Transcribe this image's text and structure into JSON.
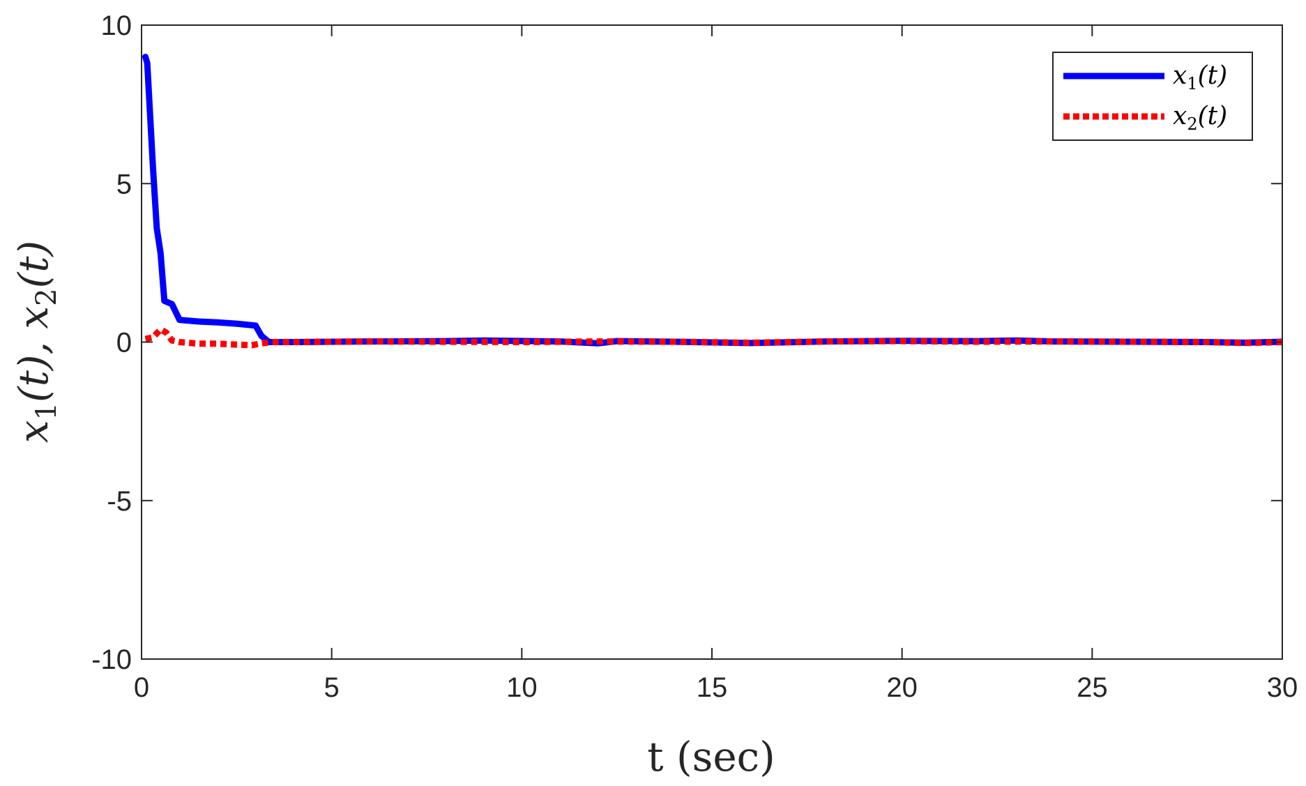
{
  "chart_data": {
    "type": "line",
    "xlabel": "t (sec)",
    "ylabel": {
      "prefix1": "x",
      "sub1": "1",
      "mid": "(t), x",
      "sub2": "2",
      "suffix": "(t)"
    },
    "xlim": [
      0,
      30
    ],
    "ylim": [
      -10,
      10
    ],
    "xticks": [
      0,
      5,
      10,
      15,
      20,
      25,
      30
    ],
    "yticks": [
      -10,
      -5,
      0,
      5,
      10
    ],
    "xtick_labels": [
      "0",
      "5",
      "10",
      "15",
      "20",
      "25",
      "30"
    ],
    "ytick_labels": [
      "-10",
      "-5",
      "0",
      "5",
      "10"
    ],
    "grid": false,
    "legend_position": "top-right",
    "series": [
      {
        "name": "x1(t)",
        "legend": {
          "base": "x",
          "sub": "1",
          "rest": "(t)"
        },
        "color": "#0000ff",
        "style": "solid",
        "x": [
          0.1,
          0.15,
          0.3,
          0.4,
          0.5,
          0.6,
          0.8,
          1.0,
          1.5,
          2.0,
          2.5,
          3.0,
          3.15,
          3.35,
          4,
          6,
          8,
          9,
          11,
          12,
          12.5,
          14,
          16,
          18,
          20,
          22,
          23,
          24,
          26,
          28,
          29,
          30
        ],
        "y": [
          9.0,
          8.8,
          5.5,
          3.6,
          2.8,
          1.3,
          1.2,
          0.7,
          0.65,
          0.62,
          0.58,
          0.52,
          0.2,
          0.0,
          0.0,
          0.02,
          0.03,
          0.05,
          0.02,
          -0.04,
          0.03,
          0.01,
          -0.03,
          0.02,
          0.04,
          0.03,
          0.05,
          0.02,
          0.01,
          0.0,
          -0.02,
          0.01
        ]
      },
      {
        "name": "x2(t)",
        "legend": {
          "base": "x",
          "sub": "2",
          "rest": "(t)"
        },
        "color": "#ff0000",
        "style": "dotted",
        "x": [
          0.1,
          0.3,
          0.5,
          0.65,
          0.8,
          1.0,
          1.5,
          2.0,
          2.5,
          2.9,
          3.1,
          3.4,
          4,
          6,
          8,
          10,
          12,
          14,
          16,
          18,
          20,
          22,
          24,
          26,
          28,
          29,
          30
        ],
        "y": [
          0.1,
          0.15,
          0.4,
          0.3,
          0.05,
          0.0,
          -0.05,
          -0.05,
          -0.08,
          -0.1,
          -0.05,
          0.0,
          0.0,
          0.02,
          0.01,
          0.0,
          0.02,
          0.01,
          -0.02,
          0.02,
          0.03,
          0.01,
          0.02,
          0.01,
          0.0,
          -0.03,
          0.0
        ]
      }
    ]
  }
}
